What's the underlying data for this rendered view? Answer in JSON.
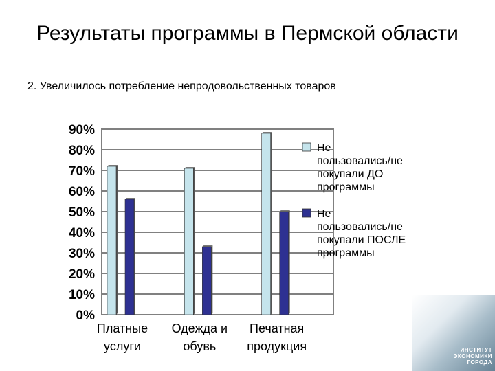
{
  "title": "Результаты программы в Пермской области",
  "subtitle": "2. Увеличилось потребление непродовольственных товаров",
  "corner_logo": "ИНСТИТУТ ЭКОНОМИКИ ГОРОДА",
  "chart_data": {
    "type": "bar",
    "categories": [
      "Платные услуги",
      "Одежда и обувь",
      "Печатная продукция"
    ],
    "category_lines": [
      [
        "Платные",
        "услуги"
      ],
      [
        "Одежда и",
        "обувь"
      ],
      [
        "Печатная",
        "продукция"
      ]
    ],
    "series": [
      {
        "name": "Не пользовались/не покупали ДО программы",
        "values": [
          72,
          71,
          88
        ],
        "color": "#c5e4ec"
      },
      {
        "name": "Не пользовались/не покупали ПОСЛЕ программы",
        "values": [
          56,
          33,
          50
        ],
        "color": "#2e3192"
      }
    ],
    "legend_lines": [
      [
        "Не",
        "пользовались/не",
        "покупали ДО",
        "программы"
      ],
      [
        "Не",
        "пользовались/не",
        "покупали ПОСЛЕ",
        "программы"
      ]
    ],
    "y_ticks": [
      "0%",
      "10%",
      "20%",
      "30%",
      "40%",
      "50%",
      "60%",
      "70%",
      "80%",
      "90%"
    ],
    "ylim": [
      0,
      90
    ],
    "grid": true,
    "legend_position": "right"
  }
}
